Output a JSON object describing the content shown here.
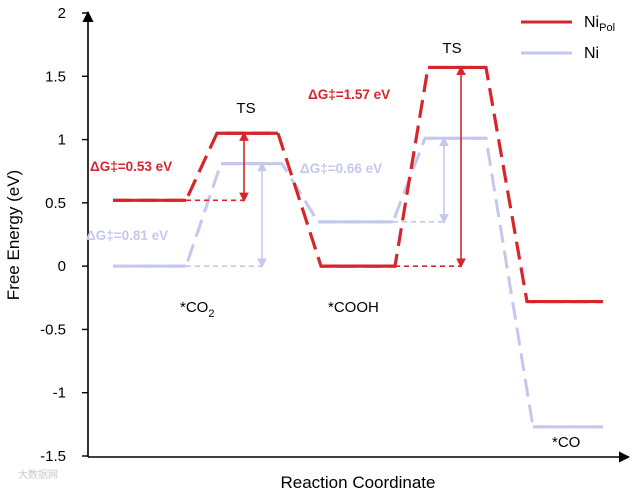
{
  "chart_data": {
    "type": "line",
    "title": "",
    "xlabel": "Reaction Coordinate",
    "ylabel": "Free Energy (eV)",
    "ylim": [
      -1.5,
      2
    ],
    "yticks": [
      "2",
      "1.5",
      "1",
      "0.5",
      "0",
      "-0.5",
      "-1",
      "-1.5"
    ],
    "legend": {
      "position": "top-right",
      "entries": [
        {
          "base": "Ni",
          "sub": "Pol",
          "color": "#d6262b"
        },
        {
          "base": "Ni",
          "sub": "",
          "color": "#c5c8ee"
        }
      ]
    },
    "series": [
      {
        "name": "Ni_Pol",
        "color": "#d6262b",
        "levels": [
          0.52,
          1.05,
          0.0,
          1.57,
          -0.28
        ]
      },
      {
        "name": "Ni",
        "color": "#c5c8ee",
        "levels": [
          0.0,
          0.81,
          0.35,
          1.01,
          -1.27
        ]
      }
    ],
    "state_labels": [
      {
        "main": "*CO",
        "sub": "2"
      },
      {
        "main": "*COOH",
        "sub": ""
      },
      {
        "main": "*CO",
        "sub": ""
      }
    ],
    "ts_labels": [
      "TS",
      "TS"
    ],
    "barriers": [
      {
        "text": "ΔG‡=0.53 eV",
        "series": "Ni_Pol",
        "from": 0.52,
        "to": 1.05
      },
      {
        "text": "ΔG‡=0.81 eV",
        "series": "Ni",
        "from": 0.0,
        "to": 0.81
      },
      {
        "text": "ΔG‡=0.66 eV",
        "series": "Ni",
        "from": 0.35,
        "to": 1.01
      },
      {
        "text": "ΔG‡=1.57 eV",
        "series": "Ni_Pol",
        "from": 0.0,
        "to": 1.57
      }
    ]
  },
  "watermark": "大数据网"
}
